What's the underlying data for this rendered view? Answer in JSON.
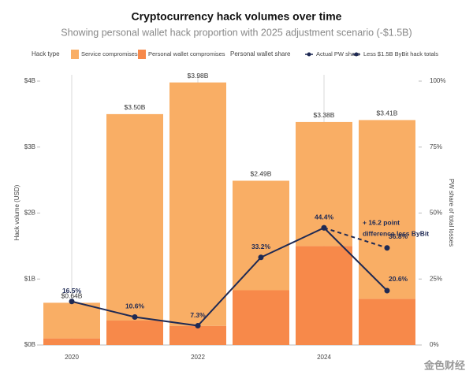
{
  "chart_data": {
    "type": "bar",
    "title": "Cryptocurrency hack volumes over time",
    "subtitle": "Showing personal wallet hack proportion with 2025 adjustment scenario (-$1.5B)",
    "y_label": "Hack volume (USD)",
    "y2_label": "PW share of total losses",
    "legend_groups": [
      "Hack type",
      "Personal wallet share"
    ],
    "x": [
      2020,
      2021,
      2022,
      2023,
      2024,
      2025
    ],
    "xlim": [
      2019.5,
      2025.5
    ],
    "xticks": [
      2020,
      2022,
      2024
    ],
    "grid": "x",
    "ylim": [
      0,
      4
    ],
    "yticks": [
      {
        "value": 0,
        "label": "$0B"
      },
      {
        "value": 1,
        "label": "$1B"
      },
      {
        "value": 2,
        "label": "$2B"
      },
      {
        "value": 3,
        "label": "$3B"
      },
      {
        "value": 4,
        "label": "$4B"
      }
    ],
    "y2lim": [
      0,
      100
    ],
    "y2ticks": [
      {
        "value": 0,
        "label": "0%"
      },
      {
        "value": 25,
        "label": "25%"
      },
      {
        "value": 50,
        "label": "50%"
      },
      {
        "value": 75,
        "label": "75%"
      },
      {
        "value": 100,
        "label": "100%"
      }
    ],
    "series": [
      {
        "name": "Personal wallet compromises",
        "color": "#f7894a",
        "kind": "bar",
        "values": [
          0.1,
          0.37,
          0.29,
          0.83,
          1.5,
          0.7
        ]
      },
      {
        "name": "Service compromises",
        "color": "#f9ae65",
        "kind": "bar",
        "values": [
          0.54,
          3.13,
          3.69,
          1.66,
          1.88,
          2.71
        ]
      },
      {
        "name": "Actual PW share",
        "color": "#1f2a54",
        "kind": "line",
        "axis": "y2",
        "values": [
          16.5,
          10.6,
          7.3,
          33.2,
          44.4,
          20.6
        ],
        "value_labels": [
          "16.5%",
          "10.6%",
          "7.3%",
          "33.2%",
          "44.4%",
          "20.6%"
        ]
      },
      {
        "name": "Less $1.5B ByBit hack totals",
        "color": "#1f2a54",
        "kind": "dashed",
        "axis": "y2",
        "values": [
          null,
          null,
          null,
          null,
          44.4,
          36.8
        ],
        "value_labels": [
          null,
          null,
          null,
          null,
          null,
          "36.8%"
        ]
      }
    ],
    "totals": {
      "values": [
        0.64,
        3.5,
        3.98,
        2.49,
        3.38,
        3.41
      ],
      "value_labels": [
        "$0.64B",
        "$3.50B",
        "$3.98B",
        "$2.49B",
        "$3.38B",
        "$3.41B"
      ]
    },
    "annotation": [
      "+ 16.2 point",
      "difference less ByBit"
    ],
    "watermark": "金色财经"
  }
}
